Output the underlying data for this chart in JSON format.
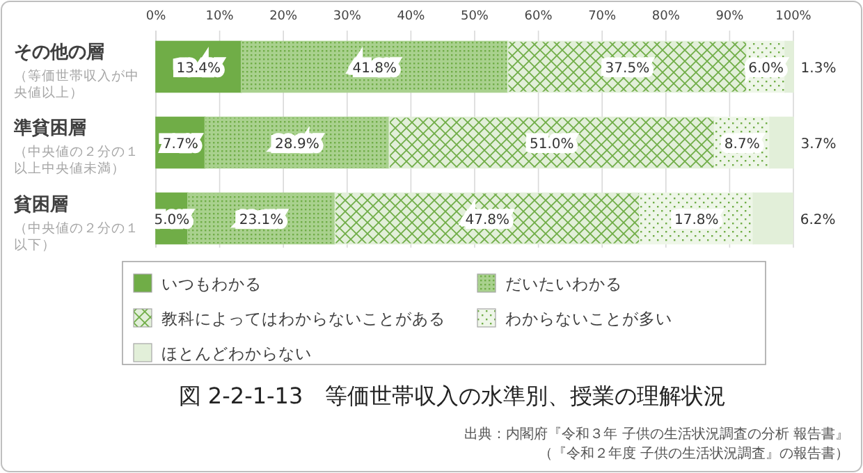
{
  "chart_data": {
    "type": "bar",
    "orientation": "horizontal",
    "stacked": true,
    "title": "図 2-2-1-13　等価世帯収入の水準別、授業の理解状況",
    "categories": [
      "その他の層（等価世帯収入が中央値以上）",
      "準貧困層（中央値の２分の１以上中央値未満）",
      "貧困層（中央値の２分の１以下）"
    ],
    "series": [
      {
        "name": "いつもわかる",
        "color": "#70ad47",
        "values": [
          13.4,
          7.7,
          5.0
        ],
        "value_labels": [
          "13.4%",
          "7.7%",
          "5.0%"
        ]
      },
      {
        "name": "だいたいわかる",
        "color": "#a9d18e",
        "values": [
          41.8,
          28.9,
          23.1
        ],
        "value_labels": [
          "41.8%",
          "28.9%",
          "23.1%"
        ]
      },
      {
        "name": "教科によってはわからないことがある",
        "color": "#e2efd9",
        "values": [
          37.5,
          51.0,
          47.8
        ],
        "value_labels": [
          "37.5%",
          "51.0%",
          "47.8%"
        ]
      },
      {
        "name": "わからないことが多い",
        "color": "#eef6e8",
        "values": [
          6.0,
          8.7,
          17.8
        ],
        "value_labels": [
          "6.0%",
          "8.7%",
          "17.8%"
        ]
      },
      {
        "name": "ほとんどわからない",
        "color": "#e2efd9",
        "values": [
          1.3,
          3.7,
          6.2
        ],
        "value_labels": [
          "1.3%",
          "3.7%",
          "6.2%"
        ]
      }
    ],
    "xlim": [
      0,
      100
    ],
    "xticks": [
      {
        "value": 0,
        "label": "0%"
      },
      {
        "value": 10,
        "label": "10%"
      },
      {
        "value": 20,
        "label": "20%"
      },
      {
        "value": 30,
        "label": "30%"
      },
      {
        "value": 40,
        "label": "40%"
      },
      {
        "value": 50,
        "label": "50%"
      },
      {
        "value": 60,
        "label": "60%"
      },
      {
        "value": 70,
        "label": "70%"
      },
      {
        "value": 80,
        "label": "80%"
      },
      {
        "value": 90,
        "label": "90%"
      },
      {
        "value": 100,
        "label": "100%"
      }
    ],
    "grid": "x",
    "legend": "bottom",
    "annotations": [
      "出典：内閣府『令和３年 子供の生活状況調査の分析 報告書』",
      "（『令和２年度 子供の生活状況調査』の報告書）"
    ]
  }
}
